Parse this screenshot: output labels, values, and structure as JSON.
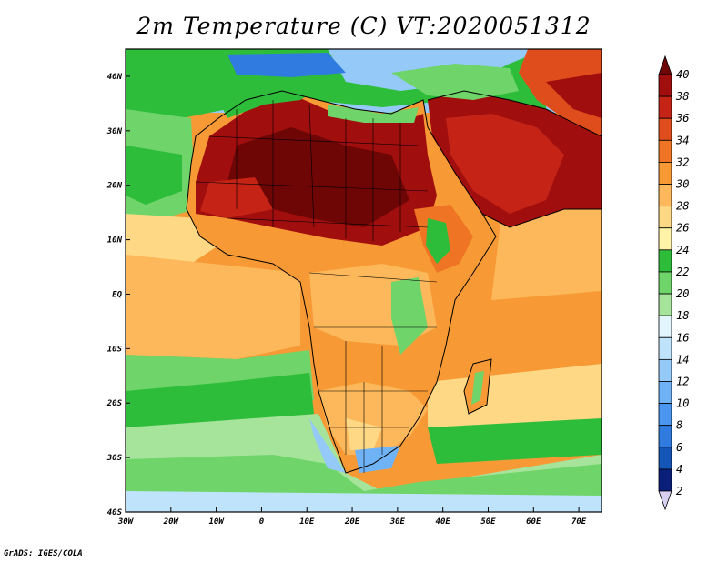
{
  "title": "2m Temperature (C) VT:2020051312",
  "credit": "GrADS: IGES/COLA",
  "map": {
    "lon_range": [
      -30,
      75
    ],
    "lat_range": [
      -40,
      45
    ],
    "lat_ticks": [
      {
        "value": 40,
        "label": "40N"
      },
      {
        "value": 30,
        "label": "30N"
      },
      {
        "value": 20,
        "label": "20N"
      },
      {
        "value": 10,
        "label": "10N"
      },
      {
        "value": 0,
        "label": "EQ"
      },
      {
        "value": -10,
        "label": "10S"
      },
      {
        "value": -20,
        "label": "20S"
      },
      {
        "value": -30,
        "label": "30S"
      },
      {
        "value": -40,
        "label": "40S"
      }
    ],
    "lon_ticks": [
      {
        "value": -30,
        "label": "30W"
      },
      {
        "value": -20,
        "label": "20W"
      },
      {
        "value": -10,
        "label": "10W"
      },
      {
        "value": 0,
        "label": "0"
      },
      {
        "value": 10,
        "label": "10E"
      },
      {
        "value": 20,
        "label": "20E"
      },
      {
        "value": 30,
        "label": "30E"
      },
      {
        "value": 40,
        "label": "40E"
      },
      {
        "value": 50,
        "label": "50E"
      },
      {
        "value": 60,
        "label": "60E"
      },
      {
        "value": 70,
        "label": "70E"
      }
    ]
  },
  "colorbar": {
    "levels": [
      "2",
      "4",
      "6",
      "8",
      "10",
      "12",
      "14",
      "16",
      "18",
      "20",
      "22",
      "24",
      "26",
      "28",
      "30",
      "32",
      "34",
      "36",
      "38",
      "40"
    ],
    "colors": [
      "#d8d0f0",
      "#0a1f7a",
      "#1455b8",
      "#2f7be0",
      "#4a96f0",
      "#6fb2f5",
      "#94c9f8",
      "#bfe3fb",
      "#e4f6fd",
      "#a6e49c",
      "#6fd46a",
      "#2ebd3a",
      "#fff3a8",
      "#fed884",
      "#fcb85a",
      "#f79a35",
      "#ef7524",
      "#e04d1d",
      "#c42316",
      "#a10e0e",
      "#6e0606"
    ]
  }
}
